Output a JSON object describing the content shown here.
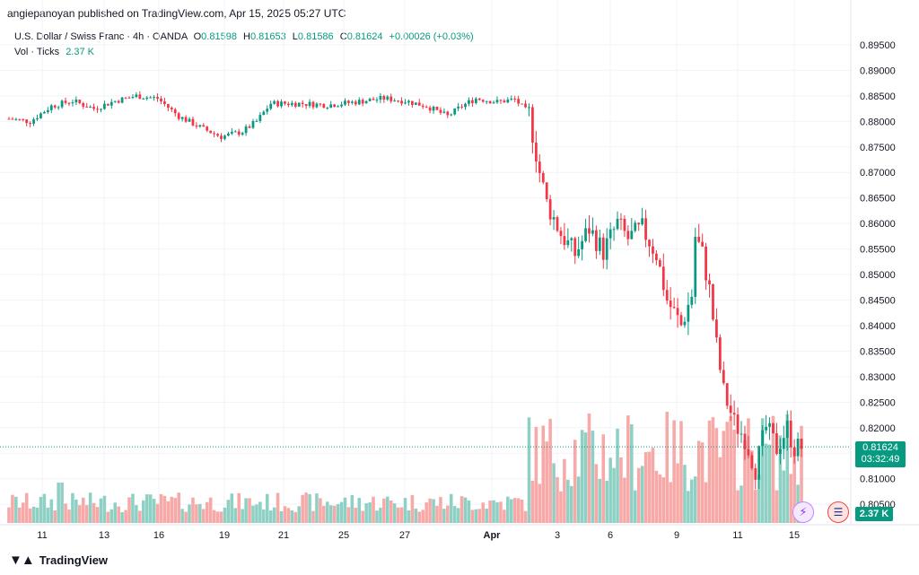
{
  "header": {
    "published": "angiepanoyan published on TradingView.com, Apr 15, 2025 05:27 UTC"
  },
  "legend": {
    "symbol": "U.S. Dollar / Swiss Franc · 4h · OANDA",
    "o_label": "O",
    "o": "0.81598",
    "h_label": "H",
    "h": "0.81653",
    "l_label": "L",
    "l": "0.81586",
    "c_label": "C",
    "c": "0.81624",
    "change": "+0.00026 (+0.03%)",
    "vol_label": "Vol · Ticks",
    "vol": "2.37 K"
  },
  "badges": {
    "price": "0.81624",
    "countdown": "03:32:49",
    "volume": "2.37 K"
  },
  "footer": {
    "brand": "TradingView"
  },
  "icons": [
    "bolt-icon",
    "flag-icon"
  ],
  "colors": {
    "up": "#089981",
    "down": "#f23645",
    "vol_up": "#8fd0c4",
    "vol_down": "#f7a9a7"
  },
  "chart_data": {
    "type": "candlestick",
    "y_ticks": [
      "0.89500",
      "0.89000",
      "0.88500",
      "0.88000",
      "0.87500",
      "0.87000",
      "0.86500",
      "0.86000",
      "0.85500",
      "0.85000",
      "0.84500",
      "0.84000",
      "0.83500",
      "0.83000",
      "0.82500",
      "0.82000",
      "0.81500",
      "0.81000",
      "0.80500"
    ],
    "ylim": [
      0.8045,
      0.8985
    ],
    "x_ticks": [
      "11",
      "13",
      "16",
      "19",
      "21",
      "25",
      "27",
      "Apr",
      "3",
      "6",
      "9",
      "11",
      "15"
    ],
    "last_price": 0.81624,
    "waypoints": [
      [
        0,
        0.8805
      ],
      [
        6,
        0.88
      ],
      [
        12,
        0.883
      ],
      [
        18,
        0.884
      ],
      [
        24,
        0.8825
      ],
      [
        30,
        0.884
      ],
      [
        36,
        0.885
      ],
      [
        42,
        0.8845
      ],
      [
        48,
        0.881
      ],
      [
        55,
        0.8785
      ],
      [
        60,
        0.877
      ],
      [
        66,
        0.878
      ],
      [
        70,
        0.88
      ],
      [
        74,
        0.8835
      ],
      [
        82,
        0.8835
      ],
      [
        90,
        0.8832
      ],
      [
        98,
        0.8838
      ],
      [
        106,
        0.8845
      ],
      [
        112,
        0.884
      ],
      [
        118,
        0.883
      ],
      [
        124,
        0.881
      ],
      [
        128,
        0.883
      ],
      [
        132,
        0.8845
      ],
      [
        138,
        0.8838
      ],
      [
        143,
        0.8843
      ],
      [
        147,
        0.8815
      ],
      [
        150,
        0.87
      ],
      [
        152,
        0.864
      ],
      [
        156,
        0.858
      ],
      [
        160,
        0.854
      ],
      [
        164,
        0.859
      ],
      [
        168,
        0.8545
      ],
      [
        172,
        0.86
      ],
      [
        175,
        0.857
      ],
      [
        179,
        0.859
      ],
      [
        183,
        0.854
      ],
      [
        186,
        0.845
      ],
      [
        190,
        0.84
      ],
      [
        193,
        0.846
      ],
      [
        194,
        0.8575
      ],
      [
        196,
        0.854
      ],
      [
        198,
        0.847
      ],
      [
        200,
        0.836
      ],
      [
        202,
        0.827
      ],
      [
        205,
        0.821
      ],
      [
        208,
        0.818
      ],
      [
        211,
        0.812
      ],
      [
        214,
        0.82
      ],
      [
        217,
        0.816
      ],
      [
        220,
        0.82
      ],
      [
        222,
        0.816
      ],
      [
        224,
        0.8162
      ]
    ],
    "n_bars": 225
  }
}
